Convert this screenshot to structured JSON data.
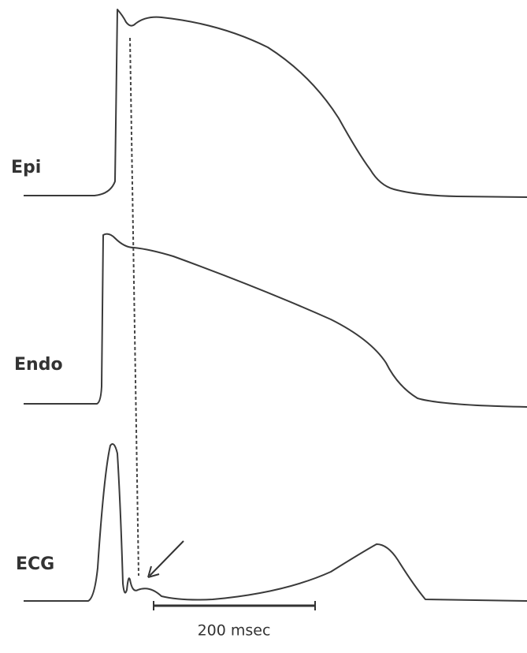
{
  "traces": [
    {
      "label": "Epi"
    },
    {
      "label": "Endo"
    },
    {
      "label": "ECG"
    }
  ],
  "scale_bar": {
    "label": "200 msec"
  }
}
